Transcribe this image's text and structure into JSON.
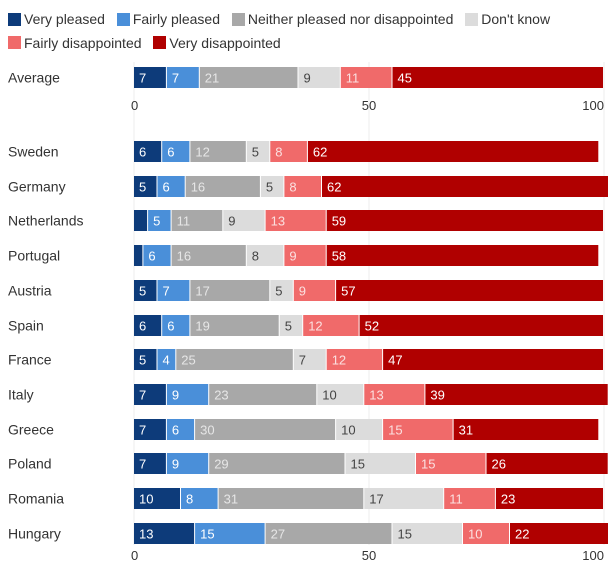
{
  "chart_data": {
    "type": "bar",
    "orientation": "horizontal",
    "stacked": true,
    "title": "",
    "xlabel": "",
    "ylabel": "",
    "xlim": [
      0,
      100
    ],
    "xticks": [
      0,
      50,
      100
    ],
    "grid": true,
    "legend": "top",
    "series_names": [
      "Very pleased",
      "Fairly pleased",
      "Neither pleased nor disappointed",
      "Don't know",
      "Fairly disappointed",
      "Very disappointed"
    ],
    "colors": [
      "#0d3b7a",
      "#4a8fd9",
      "#a8a8a8",
      "#dcdcdc",
      "#f06a6a",
      "#b00000"
    ],
    "label_colors": [
      "#ffffff",
      "#ffffff",
      "#e6e6e6",
      "#444444",
      "#fbe0e0",
      "#ffffff"
    ],
    "average": {
      "category": "Average",
      "values": [
        7,
        7,
        21,
        9,
        11,
        45
      ]
    },
    "categories": [
      "Sweden",
      "Germany",
      "Netherlands",
      "Portugal",
      "Austria",
      "Spain",
      "France",
      "Italy",
      "Greece",
      "Poland",
      "Romania",
      "Hungary"
    ],
    "series": [
      {
        "name": "Very pleased",
        "values": [
          6,
          5,
          3,
          2,
          5,
          6,
          5,
          7,
          7,
          7,
          10,
          13
        ],
        "labels": [
          "6",
          "5",
          "",
          "",
          "5",
          "6",
          "5",
          "7",
          "7",
          "7",
          "10",
          "13"
        ]
      },
      {
        "name": "Fairly pleased",
        "values": [
          6,
          6,
          5,
          6,
          7,
          6,
          4,
          9,
          6,
          9,
          8,
          15
        ],
        "labels": [
          "6",
          "6",
          "5",
          "6",
          "7",
          "6",
          "4",
          "9",
          "6",
          "9",
          "8",
          "15"
        ]
      },
      {
        "name": "Neither pleased nor disappointed",
        "values": [
          12,
          16,
          11,
          16,
          17,
          19,
          25,
          23,
          30,
          29,
          31,
          27
        ],
        "labels": [
          "12",
          "16",
          "11",
          "16",
          "17",
          "19",
          "25",
          "23",
          "30",
          "29",
          "31",
          "27"
        ]
      },
      {
        "name": "Don't know",
        "values": [
          5,
          5,
          9,
          8,
          5,
          5,
          7,
          10,
          10,
          15,
          17,
          15
        ],
        "labels": [
          "5",
          "5",
          "9",
          "8",
          "5",
          "5",
          "7",
          "10",
          "10",
          "15",
          "17",
          "15"
        ]
      },
      {
        "name": "Fairly disappointed",
        "values": [
          8,
          8,
          13,
          9,
          9,
          12,
          12,
          13,
          15,
          15,
          11,
          10
        ],
        "labels": [
          "8",
          "8",
          "13",
          "9",
          "9",
          "12",
          "12",
          "13",
          "15",
          "15",
          "11",
          "10"
        ]
      },
      {
        "name": "Very disappointed",
        "values": [
          62,
          62,
          59,
          58,
          57,
          52,
          47,
          39,
          31,
          26,
          23,
          22
        ],
        "labels": [
          "62",
          "62",
          "59",
          "58",
          "57",
          "52",
          "47",
          "39",
          "31",
          "26",
          "23",
          "22"
        ]
      }
    ]
  }
}
